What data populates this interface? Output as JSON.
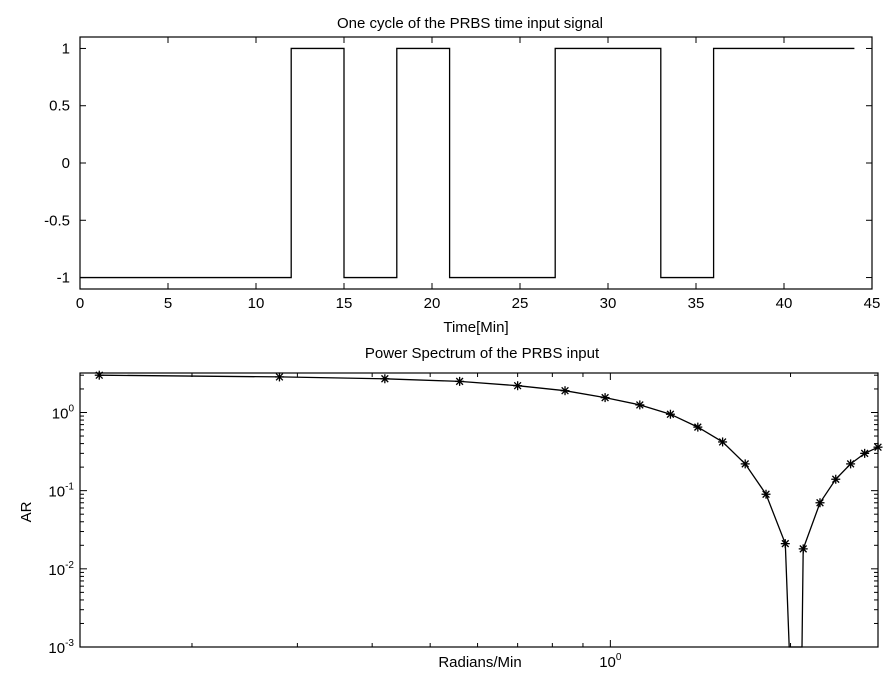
{
  "chart_data": [
    {
      "type": "line",
      "title": "One cycle of the PRBS time input signal",
      "xlabel": "Time[Min]",
      "ylabel": "",
      "xlim": [
        0,
        45
      ],
      "ylim": [
        -1.1,
        1.1
      ],
      "xticks": [
        0,
        5,
        10,
        15,
        20,
        25,
        30,
        35,
        40,
        45
      ],
      "xtick_labels": [
        "0",
        "5",
        "10",
        "15",
        "20",
        "25",
        "30",
        "35",
        "40",
        "45"
      ],
      "yticks": [
        1,
        0.5,
        0,
        -0.5,
        -1
      ],
      "ytick_labels": [
        "1",
        "0.5",
        "0",
        "-0.5",
        "-1"
      ],
      "grid": false,
      "series": [
        {
          "step": "post",
          "x": [
            0,
            12,
            15,
            18,
            21,
            27,
            33,
            36,
            44
          ],
          "y": [
            -1,
            1,
            -1,
            1,
            -1,
            1,
            -1,
            1,
            1
          ]
        }
      ]
    },
    {
      "type": "line",
      "title": "Power Spectrum of the PRBS input",
      "xlabel": "Radians/Min",
      "ylabel": "AR",
      "xscale": "log",
      "yscale": "log",
      "xlim": [
        0.13,
        2.8
      ],
      "ylim": [
        0.001,
        3.2
      ],
      "xticks": [
        1
      ],
      "xtick_labels": [
        {
          "base": "10",
          "exp": "0"
        }
      ],
      "yticks": [
        1,
        0.1,
        0.01,
        0.001
      ],
      "ytick_labels": [
        {
          "base": "10",
          "exp": "0"
        },
        {
          "base": "10",
          "exp": "-1"
        },
        {
          "base": "10",
          "exp": "-2"
        },
        {
          "base": "10",
          "exp": "-3"
        }
      ],
      "grid": false,
      "marker": "asterisk",
      "series": [
        {
          "x": [
            0.14,
            0.28,
            0.42,
            0.56,
            0.7,
            0.84,
            0.98,
            1.12,
            1.26,
            1.4,
            1.54,
            1.68,
            1.82,
            1.96,
            2.1,
            2.24,
            2.38,
            2.52,
            2.66,
            2.8
          ],
          "y": [
            3.0,
            2.85,
            2.7,
            2.5,
            2.2,
            1.9,
            1.55,
            1.25,
            0.95,
            0.65,
            0.42,
            0.22,
            0.09,
            0.021,
            0.018,
            0.07,
            0.14,
            0.22,
            0.3,
            0.36
          ]
        }
      ],
      "dips_to_axis_at_x": [
        1.99,
        2.09
      ]
    }
  ]
}
